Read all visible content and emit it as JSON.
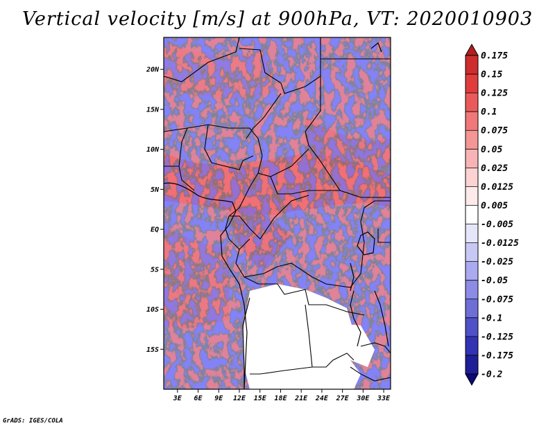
{
  "title": "Vertical velocity [m/s] at 900hPa, VT: 2020010903",
  "credit": "GrADS: IGES/COLA",
  "map": {
    "lon_range": [
      1,
      34
    ],
    "lat_range": [
      -20,
      24
    ],
    "lat_ticks": [
      {
        "value": 20,
        "label": "20N"
      },
      {
        "value": 15,
        "label": "15N"
      },
      {
        "value": 10,
        "label": "10N"
      },
      {
        "value": 5,
        "label": "5N"
      },
      {
        "value": 0,
        "label": "EQ"
      },
      {
        "value": -5,
        "label": "5S"
      },
      {
        "value": -10,
        "label": "10S"
      },
      {
        "value": -15,
        "label": "15S"
      }
    ],
    "lon_ticks": [
      {
        "value": 3,
        "label": "3E"
      },
      {
        "value": 6,
        "label": "6E"
      },
      {
        "value": 9,
        "label": "9E"
      },
      {
        "value": 12,
        "label": "12E"
      },
      {
        "value": 15,
        "label": "15E"
      },
      {
        "value": 18,
        "label": "18E"
      },
      {
        "value": 21,
        "label": "21E"
      },
      {
        "value": 24,
        "label": "24E"
      },
      {
        "value": 27,
        "label": "27E"
      },
      {
        "value": 30,
        "label": "30E"
      },
      {
        "value": 33,
        "label": "33E"
      }
    ]
  },
  "colorbar": {
    "levels": [
      "0.175",
      "0.15",
      "0.125",
      "0.1",
      "0.075",
      "0.05",
      "0.025",
      "0.0125",
      "0.005",
      "-0.005",
      "-0.0125",
      "-0.025",
      "-0.05",
      "-0.075",
      "-0.1",
      "-0.125",
      "-0.175",
      "-0.2"
    ],
    "colors": [
      "#b41e1e",
      "#cd2d2d",
      "#e13c3c",
      "#eb5a5a",
      "#f07878",
      "#f49696",
      "#f8b4b4",
      "#fcd2d2",
      "#feeaea",
      "#ffffff",
      "#e6e6fa",
      "#c8c8f5",
      "#aaaaf0",
      "#8c8ce6",
      "#6e6ed7",
      "#5050c8",
      "#3232b4",
      "#1e1e96",
      "#0a0a78"
    ]
  }
}
